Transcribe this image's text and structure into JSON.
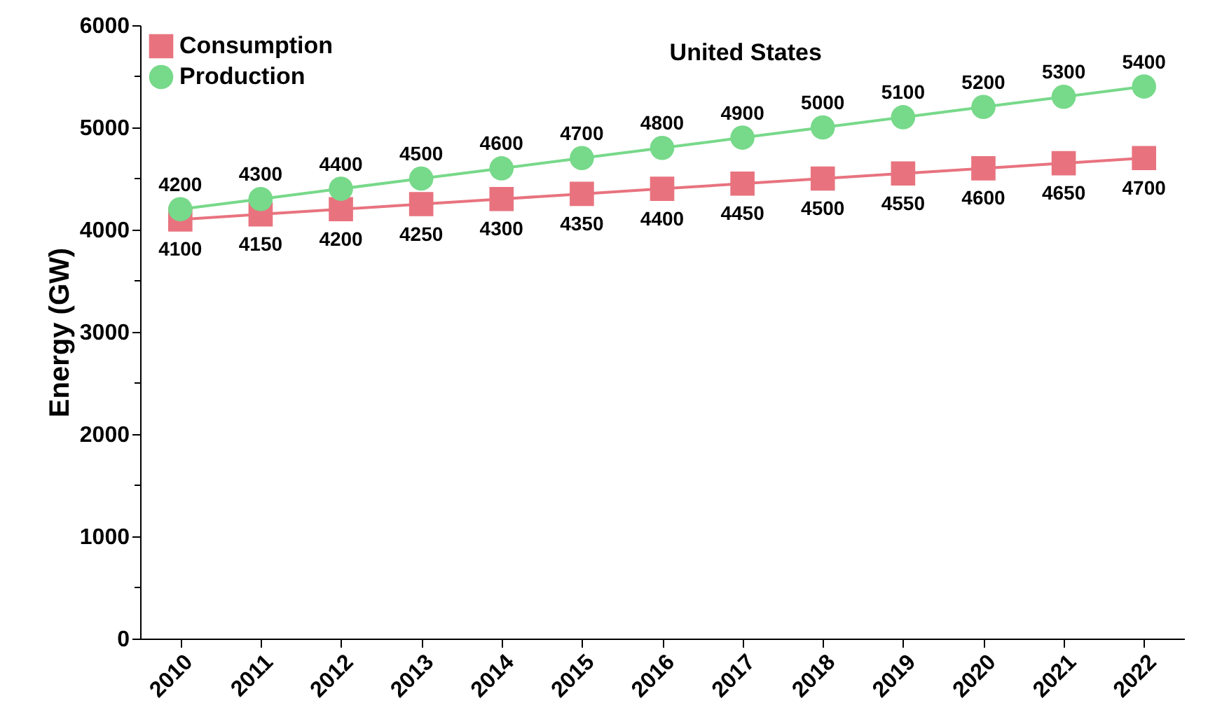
{
  "chart_data": {
    "type": "line",
    "title": "United States",
    "ylabel": "Energy (GW)",
    "categories": [
      "2010",
      "2011",
      "2012",
      "2013",
      "2014",
      "2015",
      "2016",
      "2017",
      "2018",
      "2019",
      "2020",
      "2021",
      "2022"
    ],
    "series": [
      {
        "name": "Consumption",
        "color": "#e8737f",
        "marker": "square",
        "values": [
          4100,
          4150,
          4200,
          4250,
          4300,
          4350,
          4400,
          4450,
          4500,
          4550,
          4600,
          4650,
          4700
        ]
      },
      {
        "name": "Production",
        "color": "#77d98a",
        "marker": "circle",
        "values": [
          4200,
          4300,
          4400,
          4500,
          4600,
          4700,
          4800,
          4900,
          5000,
          5100,
          5200,
          5300,
          5400
        ]
      }
    ],
    "ylim": [
      0,
      6000
    ],
    "yticks": [
      0,
      {
        "value": 500,
        "label": null
      },
      1000,
      {
        "value": 1500,
        "label": null
      },
      2000,
      {
        "value": 2500,
        "label": null
      },
      3000,
      {
        "value": 3500,
        "label": null
      },
      4000,
      {
        "value": 4500,
        "label": null
      },
      5000,
      {
        "value": 5500,
        "label": null
      },
      6000
    ],
    "data_labels": true,
    "legend": "top left",
    "grid": false,
    "line_style": "solid"
  }
}
